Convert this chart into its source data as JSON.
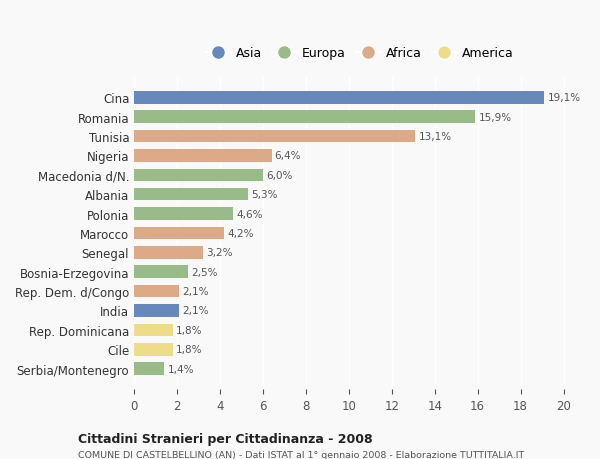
{
  "countries": [
    "Serbia/Montenegro",
    "Cile",
    "Rep. Dominicana",
    "India",
    "Rep. Dem. d/Congo",
    "Bosnia-Erzegovina",
    "Senegal",
    "Marocco",
    "Polonia",
    "Albania",
    "Macedonia d/N.",
    "Nigeria",
    "Tunisia",
    "Romania",
    "Cina"
  ],
  "values": [
    1.4,
    1.8,
    1.8,
    2.1,
    2.1,
    2.5,
    3.2,
    4.2,
    4.6,
    5.3,
    6.0,
    6.4,
    13.1,
    15.9,
    19.1
  ],
  "labels": [
    "1,4%",
    "1,8%",
    "1,8%",
    "2,1%",
    "2,1%",
    "2,5%",
    "3,2%",
    "4,2%",
    "4,6%",
    "5,3%",
    "6,0%",
    "6,4%",
    "13,1%",
    "15,9%",
    "19,1%"
  ],
  "continents": [
    "Europa",
    "America",
    "America",
    "Asia",
    "Africa",
    "Europa",
    "Africa",
    "Africa",
    "Europa",
    "Europa",
    "Europa",
    "Africa",
    "Africa",
    "Europa",
    "Asia"
  ],
  "colors": {
    "Asia": "#6688BB",
    "Europa": "#99BB88",
    "Africa": "#DDAA88",
    "America": "#EEDD88"
  },
  "legend_order": [
    "Asia",
    "Europa",
    "Africa",
    "America"
  ],
  "xlim": [
    0,
    21
  ],
  "xticks": [
    0,
    2,
    4,
    6,
    8,
    10,
    12,
    14,
    16,
    18,
    20
  ],
  "title": "Cittadini Stranieri per Cittadinanza - 2008",
  "subtitle": "COMUNE DI CASTELBELLINO (AN) - Dati ISTAT al 1° gennaio 2008 - Elaborazione TUTTITALIA.IT",
  "bg_color": "#f9f9f9",
  "bar_height": 0.65
}
